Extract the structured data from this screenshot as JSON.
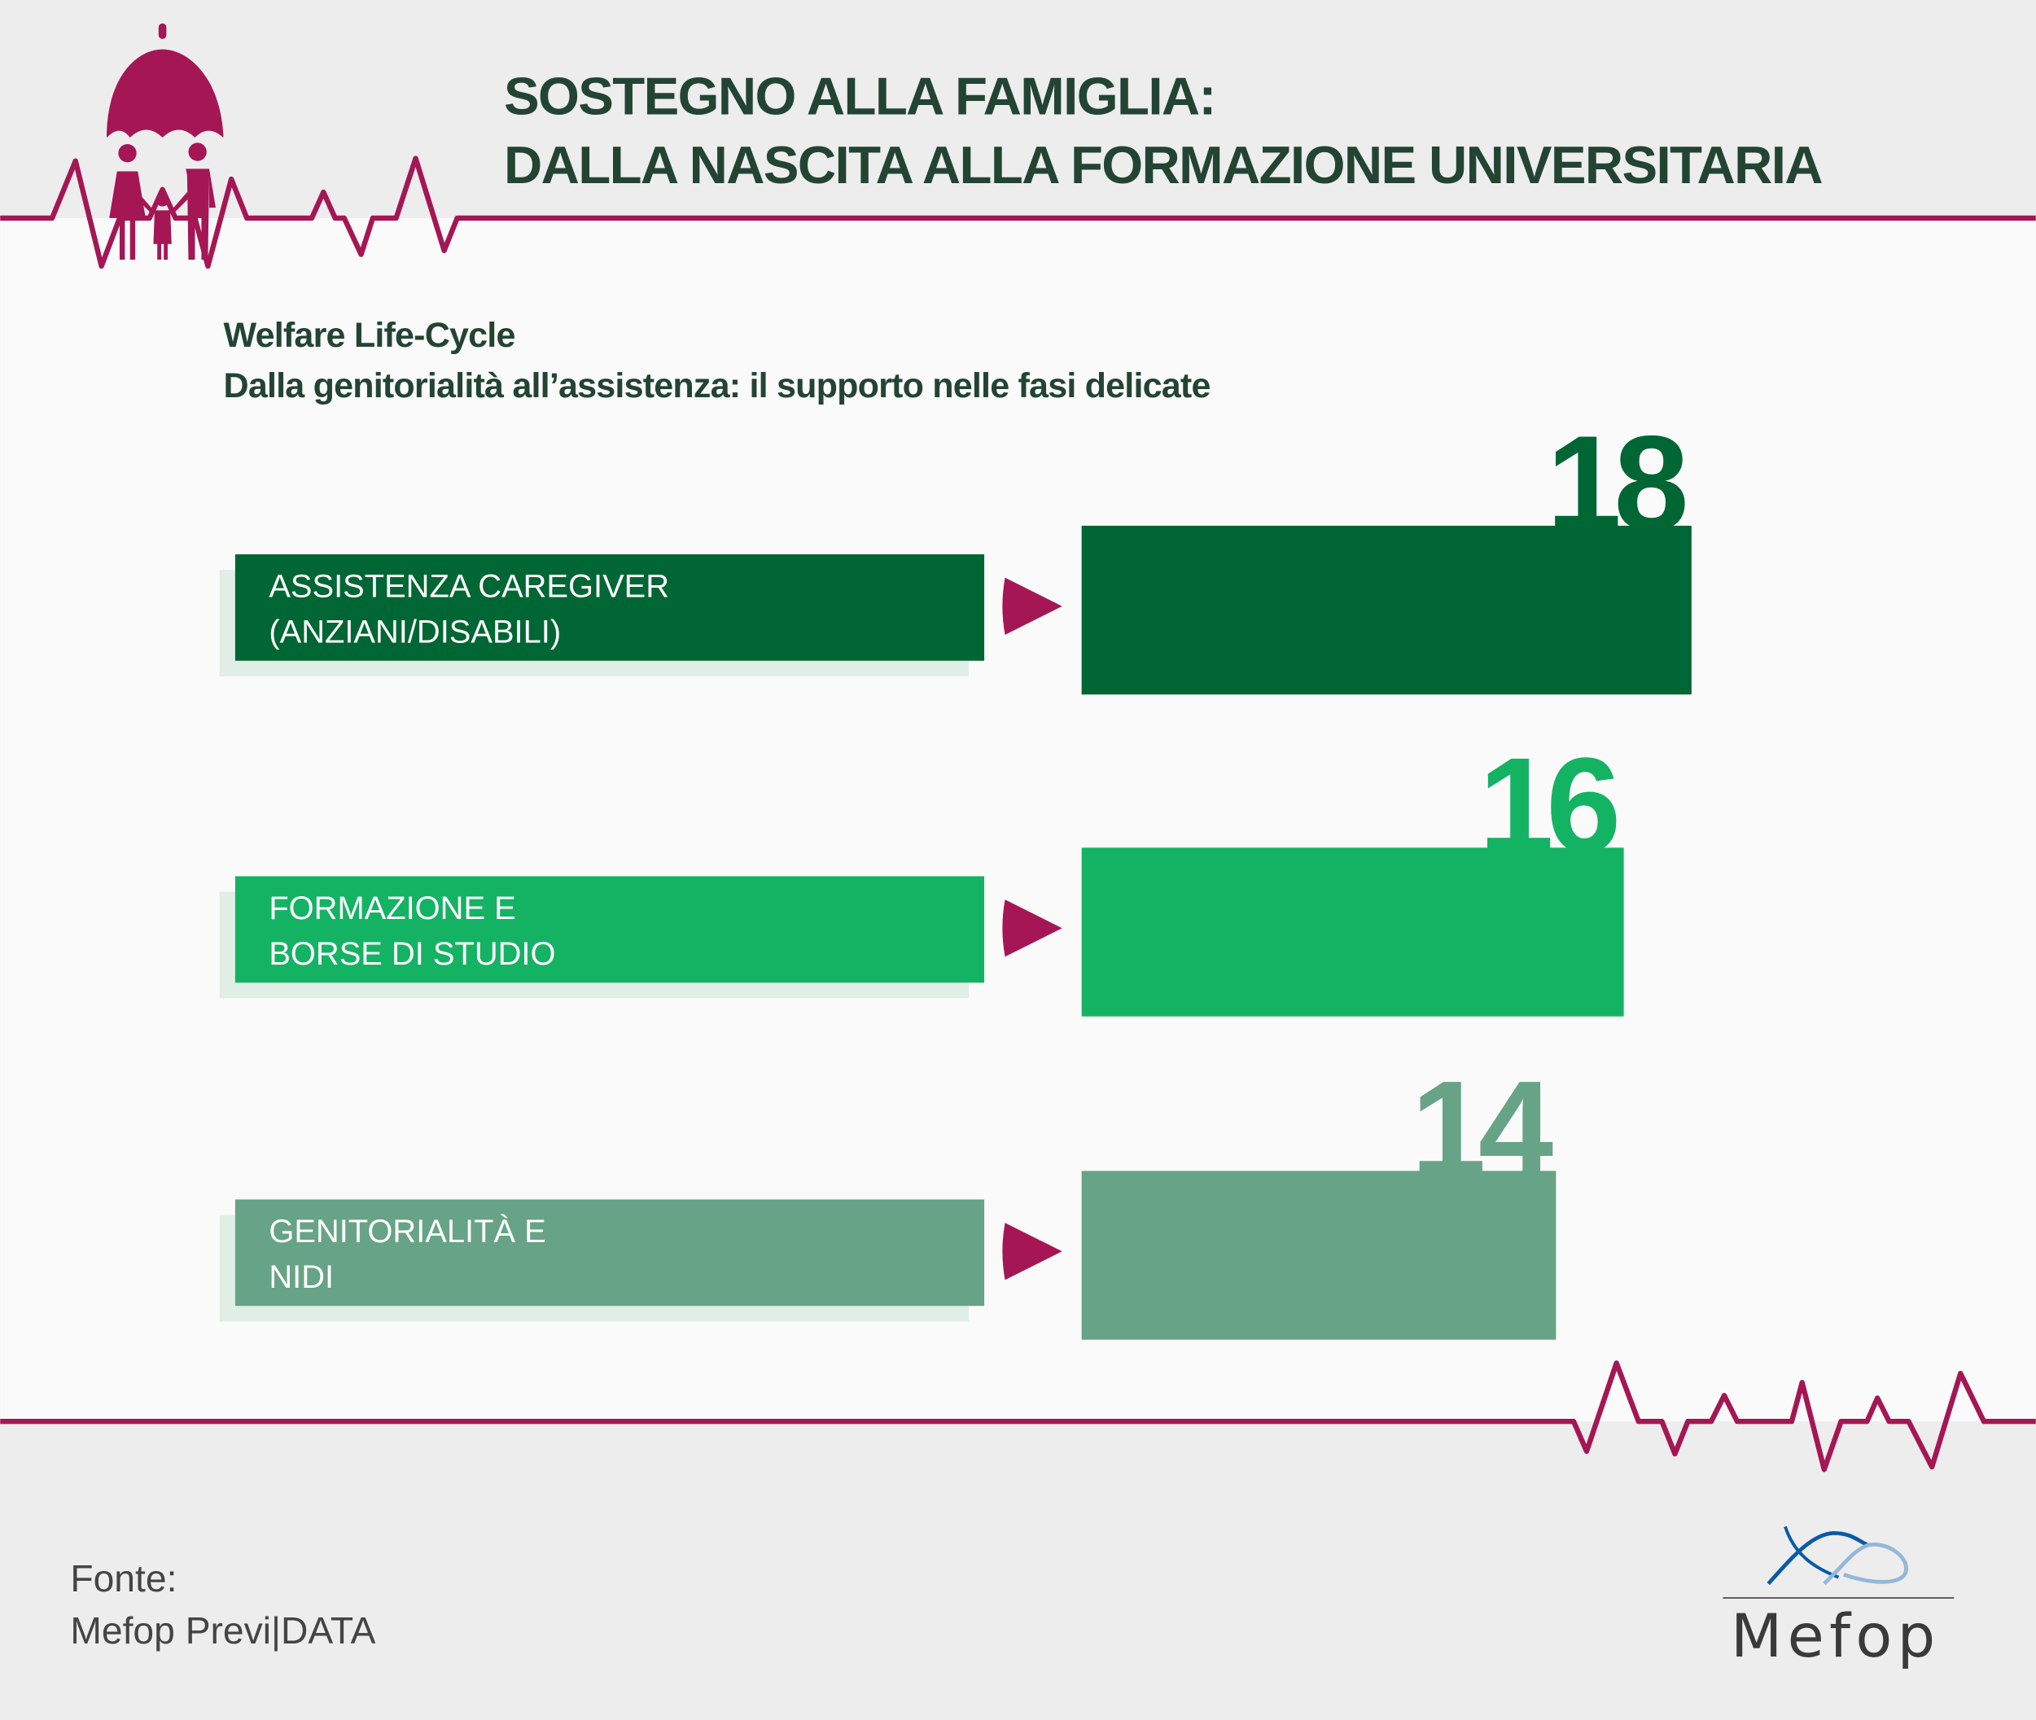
{
  "header": {
    "title_line1": "SOSTEGNO ALLA FAMIGLIA:",
    "title_line2": "DALLA NASCITA ALLA FORMAZIONE UNIVERSITARIA",
    "icon": "family-umbrella-icon"
  },
  "chart_data": {
    "type": "bar",
    "orientation": "horizontal",
    "title": "Welfare Life-Cycle",
    "subtitle": "Dalla genitorialità all’assistenza: il supporto nelle fasi delicate",
    "categories": [
      [
        "ASSISTENZA CAREGIVER",
        "(ANZIANI/DISABILI)"
      ],
      [
        "FORMAZIONE E",
        "BORSE DI STUDIO"
      ],
      [
        "GENITORIALITÀ E",
        "NIDI"
      ]
    ],
    "values": [
      18,
      16,
      14
    ],
    "value_labels": [
      "18",
      "16",
      "14"
    ],
    "colors": [
      "#006633",
      "#14b363",
      "#67a386"
    ],
    "arrow_color": "#a51655"
  },
  "footer": {
    "source_label": "Fonte:",
    "source_value": "Mefop Previ|DATA",
    "logo_text": "Mefop"
  },
  "colors": {
    "accent": "#a51655",
    "title": "#234433"
  }
}
